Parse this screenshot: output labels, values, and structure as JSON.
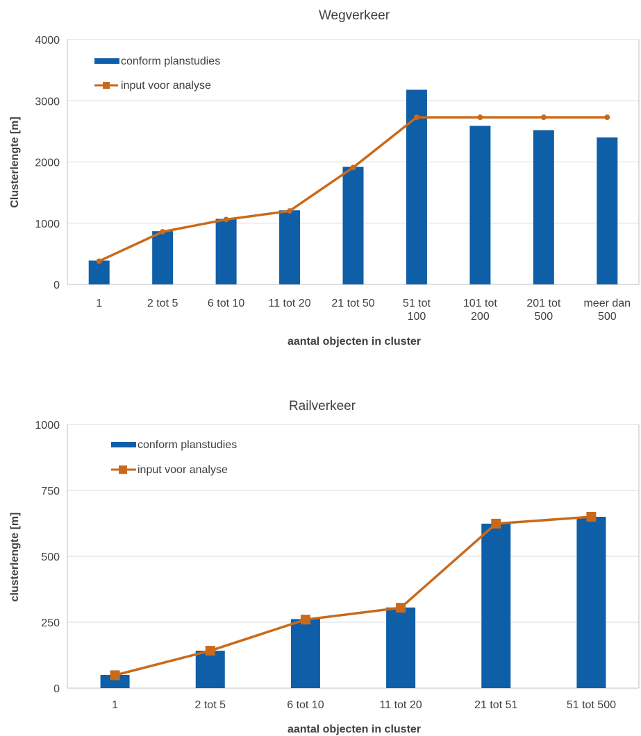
{
  "chart_data": [
    {
      "type": "bar",
      "title": "Wegverkeer",
      "xlabel": "aantal objecten in cluster",
      "ylabel": "Clusterlengte [m]",
      "ylim": [
        0,
        4000
      ],
      "yticks": [
        0,
        1000,
        2000,
        3000,
        4000
      ],
      "categories": [
        [
          "1"
        ],
        [
          "2 tot 5"
        ],
        [
          "6 tot 10"
        ],
        [
          "11 tot 20"
        ],
        [
          "21 tot 50"
        ],
        [
          "51 tot",
          "100"
        ],
        [
          "101 tot",
          "200"
        ],
        [
          "201 tot",
          "500"
        ],
        [
          "meer dan",
          "500"
        ]
      ],
      "grid": true,
      "legend_position": "top-left",
      "series": [
        {
          "name": "conform planstudies",
          "kind": "bar",
          "color": "#0f5ea8",
          "values": [
            390,
            870,
            1070,
            1210,
            1920,
            3180,
            2590,
            2520,
            2400
          ]
        },
        {
          "name": "input voor analyse",
          "kind": "line",
          "marker": "circle",
          "color": "#c96a1b",
          "values": [
            380,
            860,
            1060,
            1200,
            1910,
            2730,
            2730,
            2730,
            2730
          ]
        }
      ]
    },
    {
      "type": "bar",
      "title": "Railverkeer",
      "xlabel": "aantal objecten in cluster",
      "ylabel": "clusterlengte [m]",
      "ylim": [
        0,
        1000
      ],
      "yticks": [
        0,
        250,
        500,
        750,
        1000
      ],
      "categories": [
        [
          "1"
        ],
        [
          "2 tot 5"
        ],
        [
          "6 tot 10"
        ],
        [
          "11 tot 20"
        ],
        [
          "21 tot 51"
        ],
        [
          "51 tot 500"
        ]
      ],
      "grid": true,
      "legend_position": "top-left",
      "series": [
        {
          "name": "conform planstudies",
          "kind": "bar",
          "color": "#0f5ea8",
          "values": [
            50,
            142,
            262,
            306,
            624,
            650
          ]
        },
        {
          "name": "input voor analyse",
          "kind": "line",
          "marker": "square",
          "color": "#c96a1b",
          "values": [
            49,
            142,
            260,
            305,
            624,
            650
          ]
        }
      ]
    }
  ]
}
